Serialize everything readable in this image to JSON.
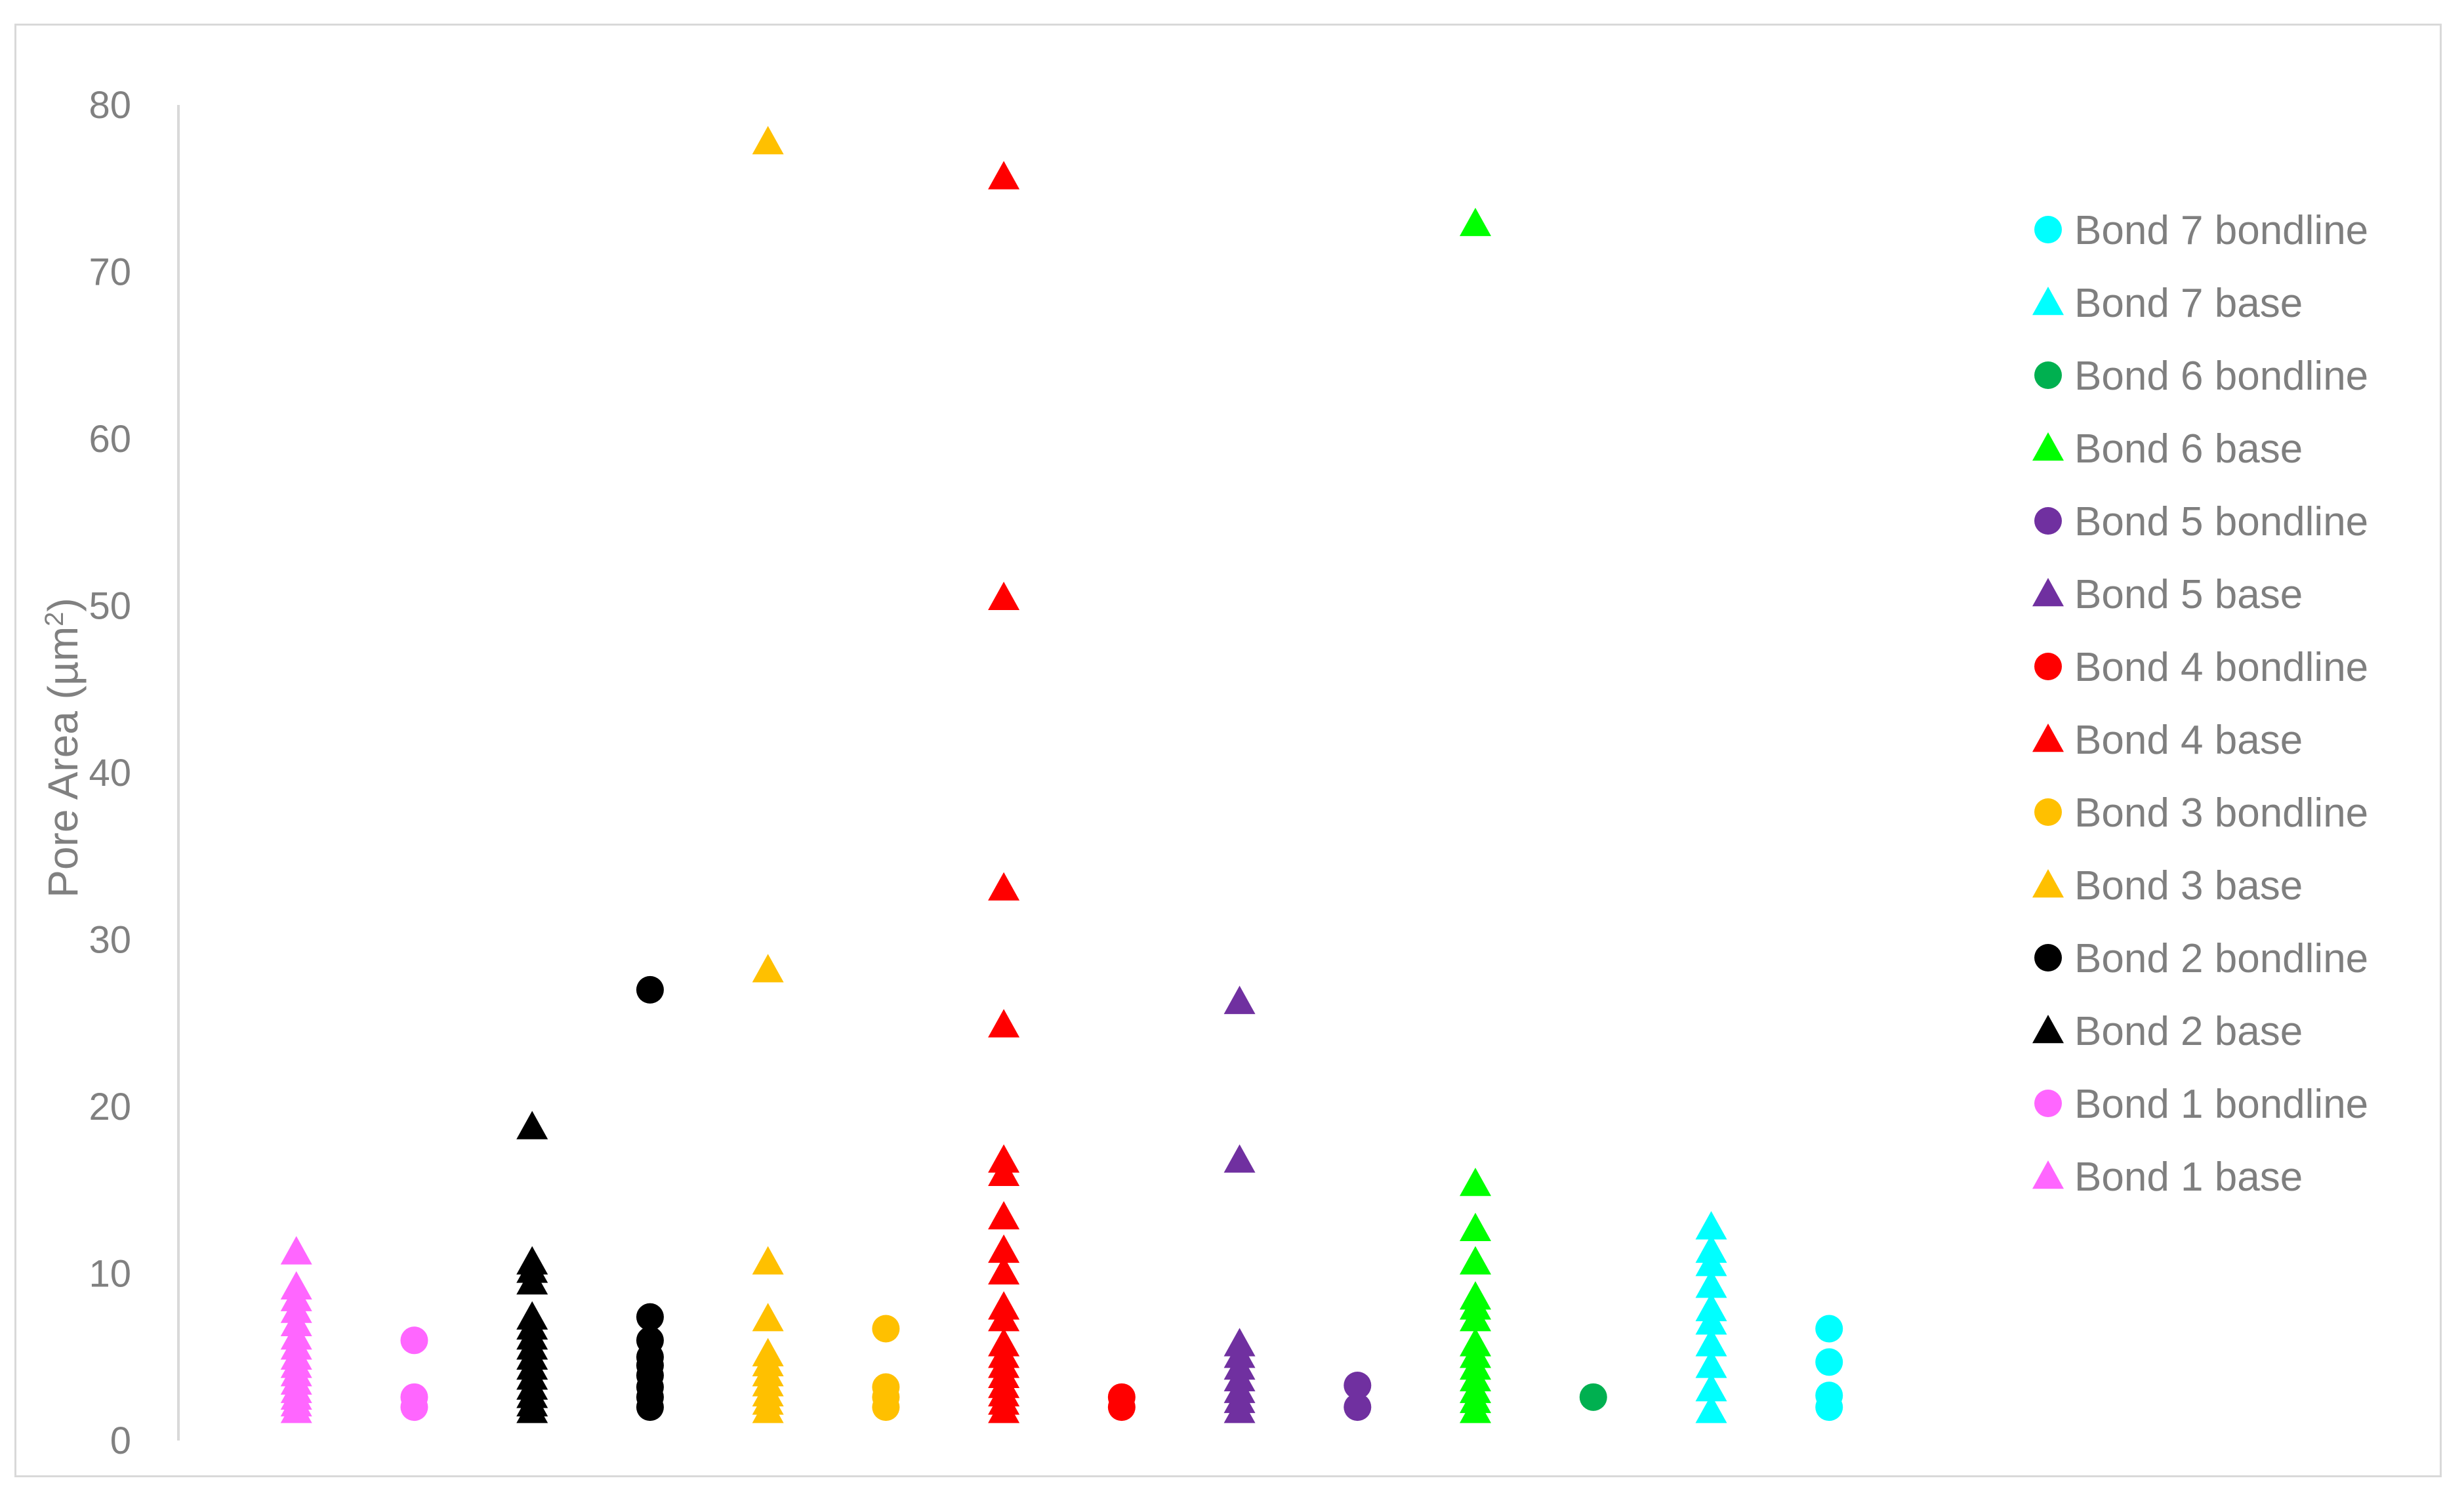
{
  "chart_data": {
    "type": "scatter",
    "title": "",
    "xlabel": "",
    "ylabel": "Pore Area (µm",
    "ylabel_sup": "2",
    "ylabel_suffix": ")",
    "ylim": [
      0,
      80
    ],
    "yticks": [
      "0",
      "10",
      "20",
      "30",
      "40",
      "50",
      "60",
      "70",
      "80"
    ],
    "xlim": [
      0,
      14.8
    ],
    "grid": false,
    "legend_position": "right",
    "series": [
      {
        "name": "Bond 1 base",
        "marker": "triangle",
        "color": "#ff66ff",
        "x": 1,
        "values": [
          1.8,
          2.2,
          2.6,
          3.0,
          3.5,
          4.0,
          4.5,
          5.0,
          5.6,
          6.2,
          7.0,
          7.8,
          8.5,
          9.2,
          11.3
        ]
      },
      {
        "name": "Bond 1 bondline",
        "marker": "circle",
        "color": "#ff66ff",
        "x": 2,
        "values": [
          2.0,
          2.6,
          6.0
        ]
      },
      {
        "name": "Bond 2 base",
        "marker": "triangle",
        "color": "#000000",
        "x": 3,
        "values": [
          1.8,
          2.2,
          2.7,
          3.2,
          3.8,
          4.4,
          5.0,
          5.6,
          6.2,
          6.8,
          7.4,
          9.5,
          10.2,
          10.7,
          18.8
        ]
      },
      {
        "name": "Bond 2 bondline",
        "marker": "circle",
        "color": "#000000",
        "x": 4,
        "values": [
          2.0,
          2.6,
          3.2,
          3.9,
          4.5,
          5.0,
          6.0,
          7.4,
          27.0
        ]
      },
      {
        "name": "Bond 3 base",
        "marker": "triangle",
        "color": "#ffc000",
        "x": 5,
        "values": [
          1.8,
          2.3,
          2.8,
          3.4,
          4.0,
          4.6,
          5.2,
          7.3,
          10.7,
          28.2,
          77.8
        ]
      },
      {
        "name": "Bond 3 bondline",
        "marker": "circle",
        "color": "#ffc000",
        "x": 6,
        "values": [
          2.0,
          2.6,
          3.2,
          6.7
        ]
      },
      {
        "name": "Bond 4 base",
        "marker": "triangle",
        "color": "#ff0000",
        "x": 7,
        "values": [
          1.8,
          2.3,
          2.8,
          3.3,
          3.9,
          4.5,
          5.1,
          5.8,
          7.3,
          8.0,
          10.1,
          11.4,
          13.4,
          16.0,
          16.8,
          24.9,
          33.1,
          50.5,
          75.7
        ]
      },
      {
        "name": "Bond 4 bondline",
        "marker": "circle",
        "color": "#ff0000",
        "x": 8,
        "values": [
          2.0,
          2.6
        ]
      },
      {
        "name": "Bond 5 base",
        "marker": "triangle",
        "color": "#7030a0",
        "x": 9,
        "values": [
          1.8,
          2.4,
          3.0,
          3.7,
          4.4,
          5.1,
          5.8,
          16.8,
          26.3
        ]
      },
      {
        "name": "Bond 5 bondline",
        "marker": "circle",
        "color": "#7030a0",
        "x": 10,
        "values": [
          2.0,
          3.3
        ]
      },
      {
        "name": "Bond 6 base",
        "marker": "triangle",
        "color": "#00ff00",
        "x": 11,
        "values": [
          1.8,
          2.4,
          3.0,
          3.7,
          4.4,
          5.1,
          5.8,
          7.3,
          8.0,
          8.6,
          10.7,
          12.7,
          15.4,
          72.9
        ]
      },
      {
        "name": "Bond 6 bondline",
        "marker": "circle",
        "color": "#00b050",
        "x": 12,
        "values": [
          2.6
        ]
      },
      {
        "name": "Bond 7 base",
        "marker": "triangle",
        "color": "#00ffff",
        "x": 13,
        "values": [
          1.8,
          3.1,
          4.5,
          5.8,
          7.1,
          7.9,
          9.3,
          10.6,
          11.4,
          12.8
        ]
      },
      {
        "name": "Bond 7 bondline",
        "marker": "circle",
        "color": "#00ffff",
        "x": 14,
        "values": [
          2.0,
          2.7,
          4.7,
          6.7
        ]
      }
    ],
    "legend_order": [
      "Bond 7 bondline",
      "Bond 7 base",
      "Bond 6 bondline",
      "Bond 6 base",
      "Bond 5 bondline",
      "Bond 5 base",
      "Bond 4 bondline",
      "Bond 4 base",
      "Bond 3 bondline",
      "Bond 3 base",
      "Bond 2 bondline",
      "Bond 2 base",
      "Bond 1 bondline",
      "Bond 1 base"
    ]
  },
  "colors": {
    "axis": "#d9d9d9",
    "tick_text": "#808080",
    "legend_text": "#7f7f7f"
  }
}
